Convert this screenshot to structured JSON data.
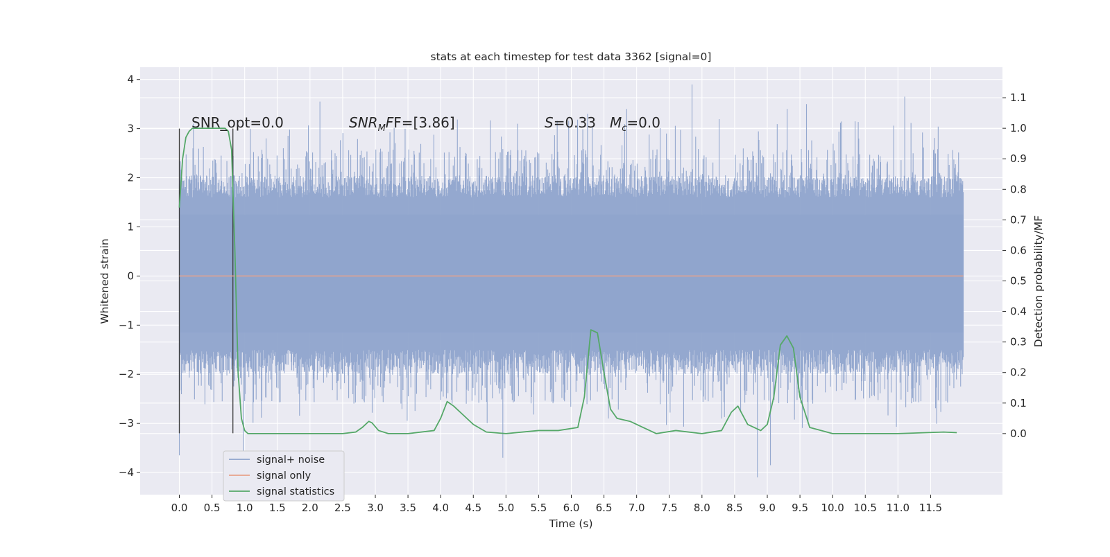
{
  "chart_data": {
    "type": "line",
    "title": "stats at each timestep for test data 3362 [signal=0]",
    "xlabel": "Time (s)",
    "ylabel_left": "Whitened strain",
    "ylabel_right": "Detection probability/MF",
    "xlim": [
      -0.6,
      12.6
    ],
    "ylim_left": [
      -4.45,
      4.25
    ],
    "ylim_right": [
      -0.2,
      1.2
    ],
    "x_ticks": [
      "0.0",
      "0.5",
      "1.0",
      "1.5",
      "2.0",
      "2.5",
      "3.0",
      "3.5",
      "4.0",
      "4.5",
      "5.0",
      "5.5",
      "6.0",
      "6.5",
      "7.0",
      "7.5",
      "8.0",
      "8.5",
      "9.0",
      "9.5",
      "10.0",
      "10.5",
      "11.0",
      "11.5"
    ],
    "y_ticks_left": [
      "-4",
      "-3",
      "-2",
      "-1",
      "0",
      "1",
      "2",
      "3",
      "4"
    ],
    "y_ticks_right": [
      "0.0",
      "0.1",
      "0.2",
      "0.3",
      "0.4",
      "0.5",
      "0.6",
      "0.7",
      "0.8",
      "0.9",
      "1.0",
      "1.1"
    ],
    "grid": true,
    "legend_position": "lower-left",
    "annotations": {
      "snr_opt": "SNR_opt=0.0",
      "snr_mf_prefix": "SNR",
      "snr_mf_sub": "M",
      "snr_mf_suffix": "F=[3.86]",
      "s_symbol": "S",
      "s_value": "=0.33",
      "mc_symbol": "M",
      "mc_sub": "c",
      "mc_value": "=0.0"
    },
    "vertical_markers": [
      0.0,
      0.82
    ],
    "series": [
      {
        "name": "signal+ noise",
        "color": "#8fa4cc",
        "envelope": {
          "x_range": [
            0.0,
            12.0
          ],
          "core_band": [
            -1.5,
            1.6
          ],
          "typical_peaks": [
            -2.6,
            2.6
          ],
          "max_peaks": [
            {
              "x": 7.85,
              "y": 3.9
            },
            {
              "x": 11.1,
              "y": 3.65
            },
            {
              "x": 2.15,
              "y": 3.55
            },
            {
              "x": 9.6,
              "y": 3.5
            },
            {
              "x": 8.85,
              "y": -4.1
            },
            {
              "x": 9.05,
              "y": -3.85
            },
            {
              "x": 4.95,
              "y": -3.7
            },
            {
              "x": 0.0,
              "y": -3.65
            },
            {
              "x": 0.98,
              "y": -3.7
            },
            {
              "x": 6.85,
              "y": 3.4
            },
            {
              "x": 9.3,
              "y": 3.4
            },
            {
              "x": 6.25,
              "y": 3.3
            }
          ]
        }
      },
      {
        "name": "signal only",
        "color": "#e8a28a",
        "x": [
          0.0,
          12.0
        ],
        "y": [
          0.0,
          0.0
        ]
      },
      {
        "name": "signal statistics",
        "color": "#55a868",
        "axis": "right",
        "x": [
          0.0,
          0.05,
          0.1,
          0.15,
          0.2,
          0.3,
          0.45,
          0.6,
          0.7,
          0.75,
          0.8,
          0.85,
          0.9,
          0.95,
          1.0,
          1.05,
          1.2,
          1.5,
          2.0,
          2.5,
          2.7,
          2.8,
          2.9,
          2.95,
          3.05,
          3.2,
          3.5,
          3.9,
          4.0,
          4.1,
          4.2,
          4.3,
          4.5,
          4.7,
          5.0,
          5.5,
          5.8,
          6.1,
          6.2,
          6.3,
          6.4,
          6.5,
          6.6,
          6.7,
          6.9,
          7.1,
          7.3,
          7.6,
          8.0,
          8.3,
          8.45,
          8.55,
          8.7,
          8.9,
          9.0,
          9.1,
          9.2,
          9.3,
          9.4,
          9.5,
          9.65,
          10.0,
          11.0,
          11.7,
          11.9
        ],
        "y": [
          0.74,
          0.9,
          0.97,
          0.99,
          1.0,
          1.0,
          1.0,
          1.0,
          1.0,
          0.99,
          0.93,
          0.6,
          0.2,
          0.05,
          0.01,
          0.0,
          0.0,
          0.0,
          0.0,
          0.0,
          0.005,
          0.02,
          0.04,
          0.035,
          0.01,
          0.0,
          0.0,
          0.01,
          0.05,
          0.105,
          0.09,
          0.07,
          0.03,
          0.005,
          0.0,
          0.01,
          0.01,
          0.02,
          0.12,
          0.34,
          0.33,
          0.2,
          0.08,
          0.05,
          0.04,
          0.02,
          0.0,
          0.01,
          0.0,
          0.01,
          0.07,
          0.09,
          0.03,
          0.01,
          0.03,
          0.12,
          0.29,
          0.32,
          0.28,
          0.12,
          0.02,
          0.0,
          0.0,
          0.005,
          0.003
        ]
      }
    ]
  }
}
